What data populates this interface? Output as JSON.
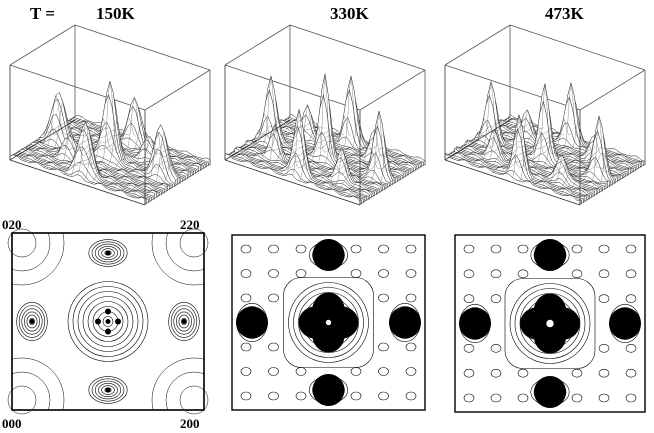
{
  "label_prefix": "T =",
  "panels": [
    {
      "temperature": "150K"
    },
    {
      "temperature": "330K"
    },
    {
      "temperature": "473K"
    }
  ],
  "corner_labels": {
    "top_left": "020",
    "top_right": "220",
    "bottom_left": "000",
    "bottom_right": "200"
  }
}
